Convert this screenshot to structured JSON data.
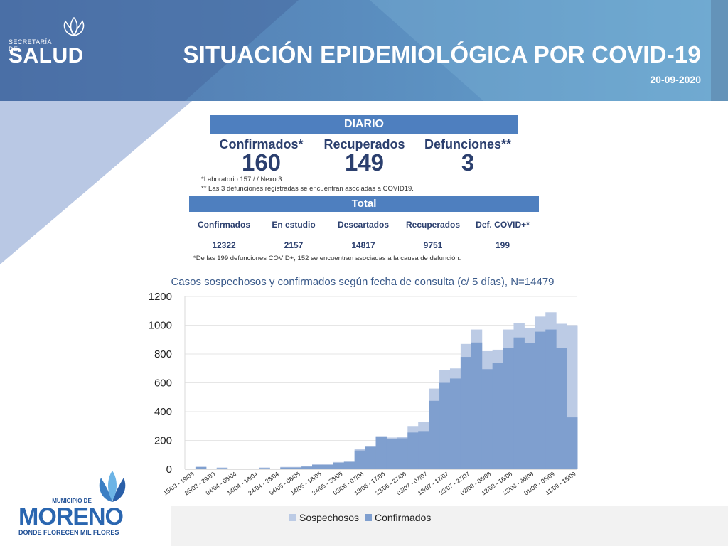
{
  "header": {
    "logo_small": "SECRETARÍA DE",
    "logo_big": "SALUD",
    "title": "SITUACIÓN EPIDEMIOLÓGICA POR COVID-19",
    "date": "20-09-2020"
  },
  "diario": {
    "title": "DIARIO",
    "confirmados_label": "Confirmados*",
    "confirmados_value": "160",
    "recuperados_label": "Recuperados",
    "recuperados_value": "149",
    "defunciones_label": "Defunciones**",
    "defunciones_value": "3",
    "note1": "*Laboratorio 157 / / Nexo 3",
    "note2": "** Las 3 defunciones registradas se encuentran asociadas a COVID19."
  },
  "total": {
    "title": "Total",
    "labels": [
      "Confirmados",
      "En estudio",
      "Descartados",
      "Recuperados",
      "Def. COVID+*"
    ],
    "values": [
      "12322",
      "2157",
      "14817",
      "9751",
      "199"
    ],
    "note": "*De las 199 defunciones COVID+, 152 se encuentran asociadas a la causa de defunción."
  },
  "footer_logo": {
    "line1": "MUNICIPIO DE",
    "line2": "MORENO",
    "line3": "DONDE FLORECEN MIL FLORES"
  },
  "colors": {
    "header_blue": "#3f6ea8",
    "bar_blue": "#4e7fbf",
    "sospechosos": "#bccbe5",
    "confirmados": "#7f9fcf"
  },
  "chart_data": {
    "type": "area",
    "title": "Casos sospechosos y confirmados según fecha de consulta (c/ 5 días), N=14479",
    "ylim": [
      0,
      1200
    ],
    "yticks": [
      0,
      200,
      400,
      600,
      800,
      1000,
      1200
    ],
    "grid": true,
    "legend_position": "bottom",
    "tick_labels": [
      "15/03 - 19/03",
      "25/03 - 29/03",
      "04/04 - 08/04",
      "14/04 - 18/04",
      "24/04 - 28/04",
      "04/05 - 08/05",
      "14/05 - 18/05",
      "24/05 - 28/05",
      "03/06 - 07/06",
      "13/06 - 17/06",
      "23/06 - 27/06",
      "03/07 - 07/07",
      "13/07 - 17/07",
      "23/07 - 27/07",
      "02/08 - 06/08",
      "12/08 - 16/08",
      "22/08 - 26/08",
      "01/09 - 05/09",
      "11/09 - 15/09"
    ],
    "series": [
      {
        "name": "Sospechosos",
        "color": "#bccbe5",
        "values": [
          2,
          18,
          2,
          12,
          2,
          3,
          5,
          12,
          5,
          16,
          16,
          22,
          35,
          35,
          50,
          55,
          140,
          160,
          230,
          220,
          225,
          300,
          330,
          560,
          690,
          700,
          870,
          970,
          820,
          830,
          970,
          1015,
          980,
          1060,
          1090,
          1010,
          1000
        ]
      },
      {
        "name": "Confirmados",
        "color": "#7f9fcf",
        "values": [
          1,
          15,
          1,
          8,
          1,
          2,
          3,
          8,
          3,
          12,
          12,
          18,
          30,
          30,
          45,
          50,
          130,
          155,
          225,
          210,
          215,
          255,
          265,
          475,
          600,
          630,
          780,
          880,
          695,
          740,
          840,
          915,
          875,
          955,
          970,
          840,
          360
        ]
      }
    ]
  }
}
